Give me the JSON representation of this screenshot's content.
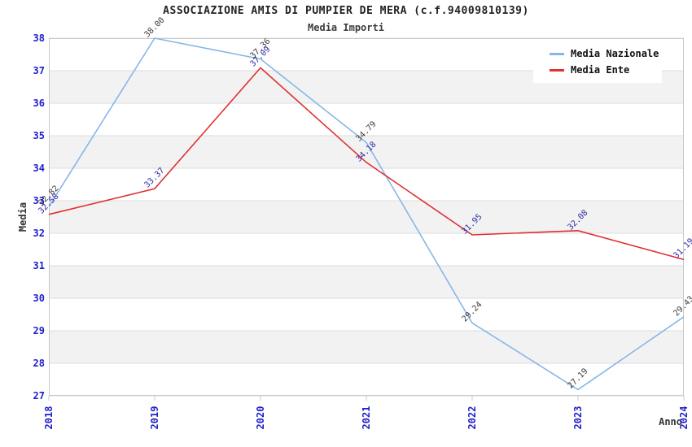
{
  "title": "ASSOCIAZIONE AMIS DI PUMPIER DE MERA (c.f.94009810139)",
  "subtitle": "Media Importi",
  "axes": {
    "x_label": "Anno",
    "y_label": "Media"
  },
  "chart_data": {
    "type": "line",
    "x": [
      "2018",
      "2019",
      "2020",
      "2021",
      "2022",
      "2023",
      "2024"
    ],
    "series": [
      {
        "name": "Media Nazionale",
        "color": "#85b7e8",
        "label_color": "#3d3d3d",
        "values": [
          32.82,
          38.0,
          37.36,
          34.79,
          29.24,
          27.19,
          29.43
        ]
      },
      {
        "name": "Media Ente",
        "color": "#e03030",
        "label_color": "#2d2da8",
        "values": [
          32.58,
          33.37,
          37.09,
          34.18,
          31.95,
          32.08,
          31.19
        ]
      }
    ],
    "xlabel": "Anno",
    "ylabel": "Media",
    "ylim": [
      27,
      38
    ],
    "yticks": [
      27,
      28,
      29,
      30,
      31,
      32,
      33,
      34,
      35,
      36,
      37,
      38
    ],
    "grid": true,
    "legend_position": "top-right",
    "point_label_decimals": 2,
    "colors": {
      "band_white": "#ffffff",
      "band_gray": "#f2f2f2",
      "gridline": "#dcdcdc",
      "plot_border": "#c9c9c9",
      "tick_label": "#2020cc"
    }
  }
}
